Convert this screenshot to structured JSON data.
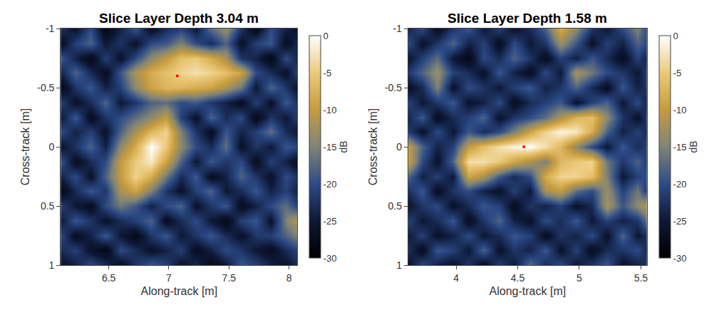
{
  "chart_data": [
    {
      "type": "heatmap",
      "title": "Slice Layer Depth 3.04 m",
      "x_label": "Along-track [m]",
      "y_label": "Cross-track [m]",
      "xlim": [
        6.1,
        8.07
      ],
      "ylim": [
        1,
        -1
      ],
      "xticks": [
        6.5,
        7,
        7.5,
        8
      ],
      "yticks": [
        -1,
        -0.5,
        0,
        0.5,
        1
      ],
      "colorbar": {
        "title": "dB",
        "range": [
          -30,
          0
        ],
        "ticks": [
          0,
          -5,
          -10,
          -15,
          -20,
          -25,
          -30
        ]
      },
      "points": {
        "x": [
          7.07
        ],
        "y": [
          -0.6
        ],
        "color": "#ff0000"
      },
      "x": [
        6.1,
        6.225,
        6.35,
        6.475,
        6.6,
        6.725,
        6.85,
        6.975,
        7.1,
        7.225,
        7.35,
        7.475,
        7.6,
        7.725,
        7.85,
        7.975,
        8.1
      ],
      "y": [
        -1,
        -0.875,
        -0.75,
        -0.625,
        -0.5,
        -0.375,
        -0.25,
        -0.125,
        0,
        0.125,
        0.25,
        0.375,
        0.5,
        0.625,
        0.75,
        0.875,
        1
      ],
      "z": [
        [
          -22,
          -26,
          -20,
          -28,
          -24,
          -19,
          -27,
          -23,
          -21,
          -25,
          -17,
          -13,
          -22,
          -28,
          -20,
          -24,
          -26
        ],
        [
          -27,
          -21,
          -18,
          -25,
          -22,
          -26,
          -20,
          -19,
          -15,
          -20,
          -23,
          -18,
          -26,
          -21,
          -19,
          -27,
          -22
        ],
        [
          -19,
          -24,
          -28,
          -21,
          -26,
          -20,
          -14,
          -10,
          -6,
          -5,
          -8,
          -12,
          -22,
          -24,
          -28,
          -20,
          -25
        ],
        [
          -24,
          -18,
          -23,
          -27,
          -19,
          -12,
          -8,
          -6,
          -4,
          -3,
          -4,
          -6,
          -9,
          -20,
          -23,
          -26,
          -19
        ],
        [
          -28,
          -22,
          -19,
          -24,
          -21,
          -14,
          -9,
          -7,
          -7,
          -8,
          -9,
          -12,
          -16,
          -25,
          -18,
          -22,
          -27
        ],
        [
          -21,
          -26,
          -23,
          -18,
          -25,
          -22,
          -18,
          -17,
          -20,
          -19,
          -22,
          -24,
          -27,
          -21,
          -26,
          -19,
          -23
        ],
        [
          -25,
          -19,
          -27,
          -22,
          -20,
          -17,
          -14,
          -10,
          -21,
          -26,
          -18,
          -23,
          -20,
          -28,
          -22,
          -25,
          -20
        ],
        [
          -20,
          -24,
          -21,
          -26,
          -18,
          -12,
          -7,
          -4,
          -15,
          -22,
          -27,
          -19,
          -24,
          -21,
          -17,
          -23,
          -26
        ],
        [
          -26,
          -22,
          -18,
          -24,
          -14,
          -8,
          0,
          -5,
          -14,
          -20,
          -23,
          -17,
          -26,
          -22,
          -25,
          -19,
          -21
        ],
        [
          -19,
          -27,
          -23,
          -20,
          -10,
          -5,
          -2,
          -9,
          -18,
          -25,
          -19,
          -22,
          -20,
          -27,
          -21,
          -24,
          -28
        ],
        [
          -24,
          -20,
          -26,
          -18,
          -10,
          -4,
          -8,
          -16,
          -23,
          -19,
          -27,
          -24,
          -18,
          -22,
          -26,
          -20,
          -23
        ],
        [
          -28,
          -23,
          -19,
          -22,
          -12,
          -9,
          -15,
          -22,
          -26,
          -21,
          -18,
          -25,
          -23,
          -19,
          -24,
          -21,
          -25
        ],
        [
          -21,
          -25,
          -27,
          -20,
          -16,
          -19,
          -24,
          -20,
          -18,
          -26,
          -22,
          -19,
          -27,
          -24,
          -20,
          -17,
          -22
        ],
        [
          -25,
          -19,
          -22,
          -26,
          -23,
          -21,
          -18,
          -27,
          -23,
          -20,
          -25,
          -28,
          -21,
          -19,
          -26,
          -15,
          -10
        ],
        [
          -20,
          -27,
          -24,
          -19,
          -25,
          -28,
          -22,
          -19,
          -25,
          -22,
          -19,
          -23,
          -26,
          -22,
          -21,
          -18,
          -14
        ],
        [
          -23,
          -21,
          -26,
          -28,
          -20,
          -23,
          -26,
          -24,
          -21,
          -27,
          -24,
          -20,
          -22,
          -25,
          -27,
          -23,
          -20
        ],
        [
          -26,
          -24,
          -20,
          -23,
          -27,
          -22,
          -19,
          -21,
          -26,
          -23,
          -28,
          -25,
          -19,
          -21,
          -24,
          -26,
          -22
        ]
      ]
    },
    {
      "type": "heatmap",
      "title": "Slice Layer Depth 1.58 m",
      "x_label": "Along-track [m]",
      "y_label": "Cross-track [m]",
      "xlim": [
        3.61,
        5.55
      ],
      "ylim": [
        1,
        -1
      ],
      "xticks": [
        4,
        4.5,
        5,
        5.5
      ],
      "yticks": [
        -1,
        -0.5,
        0,
        0.5,
        1
      ],
      "colorbar": {
        "title": "dB",
        "range": [
          -30,
          0
        ],
        "ticks": [
          0,
          -5,
          -10,
          -15,
          -20,
          -25,
          -30
        ]
      },
      "points": {
        "x": [
          4.55
        ],
        "y": [
          0.0
        ],
        "color": "#ff0000"
      },
      "x": [
        3.6,
        3.725,
        3.85,
        3.975,
        4.1,
        4.225,
        4.35,
        4.475,
        4.6,
        4.725,
        4.85,
        4.975,
        5.1,
        5.225,
        5.35,
        5.475,
        5.6
      ],
      "y": [
        -1,
        -0.875,
        -0.75,
        -0.625,
        -0.5,
        -0.375,
        -0.25,
        -0.125,
        0,
        0.125,
        0.25,
        0.375,
        0.5,
        0.625,
        0.75,
        0.875,
        1
      ],
      "z": [
        [
          -24,
          -20,
          -27,
          -22,
          -19,
          -25,
          -21,
          -26,
          -23,
          -18,
          -8,
          -14,
          -22,
          -25,
          -20,
          -15,
          -24
        ],
        [
          -19,
          -26,
          -22,
          -18,
          -24,
          -21,
          -27,
          -20,
          -25,
          -22,
          -13,
          -19,
          -26,
          -21,
          -24,
          -18,
          -22
        ],
        [
          -26,
          -21,
          -17,
          -25,
          -28,
          -20,
          -23,
          -18,
          -22,
          -27,
          -21,
          -24,
          -19,
          -23,
          -27,
          -21,
          -26
        ],
        [
          -22,
          -18,
          -13,
          -21,
          -23,
          -26,
          -19,
          -24,
          -27,
          -20,
          -25,
          -12,
          -16,
          -20,
          -22,
          -25,
          -19
        ],
        [
          -27,
          -23,
          -15,
          -26,
          -20,
          -22,
          -25,
          -21,
          -19,
          -24,
          -22,
          -18,
          -23,
          -27,
          -19,
          -24,
          -21
        ],
        [
          -20,
          -25,
          -22,
          -19,
          -26,
          -24,
          -20,
          -27,
          -23,
          -21,
          -19,
          -26,
          -21,
          -18,
          -25,
          -20,
          -27
        ],
        [
          -24,
          -19,
          -27,
          -23,
          -21,
          -18,
          -26,
          -22,
          -20,
          -17,
          -12,
          -7,
          -6,
          -14,
          -22,
          -26,
          -19
        ],
        [
          -21,
          -26,
          -20,
          -25,
          -19,
          -23,
          -20,
          -15,
          -9,
          -4,
          -1,
          -2,
          -8,
          -18,
          -24,
          -21,
          -25
        ],
        [
          -9,
          -18,
          -24,
          -21,
          -10,
          -6,
          -3,
          -1,
          0,
          -3,
          -7,
          -14,
          -20,
          -25,
          -19,
          -23,
          -20
        ],
        [
          -8,
          -20,
          -26,
          -18,
          -3,
          -3,
          -5,
          -9,
          -12,
          -15,
          -7,
          -5,
          -4,
          -16,
          -22,
          -18,
          -24
        ],
        [
          -17,
          -24,
          -21,
          -25,
          -9,
          -12,
          -19,
          -23,
          -20,
          -8,
          -4,
          -4,
          -6,
          -15,
          -25,
          -21,
          -19
        ],
        [
          -23,
          -19,
          -27,
          -22,
          -20,
          -24,
          -26,
          -21,
          -25,
          -12,
          -10,
          -17,
          -20,
          -13,
          -21,
          -16,
          -26
        ],
        [
          -26,
          -22,
          -20,
          -26,
          -23,
          -19,
          -21,
          -27,
          -22,
          -24,
          -21,
          -26,
          -23,
          -12,
          -19,
          -14,
          -9
        ],
        [
          -20,
          -25,
          -23,
          -19,
          -27,
          -22,
          -18,
          -24,
          -26,
          -20,
          -23,
          -19,
          -25,
          -21,
          -24,
          -22,
          -13
        ],
        [
          -25,
          -21,
          -26,
          -24,
          -20,
          -25,
          -23,
          -19,
          -21,
          -27,
          -22,
          -24,
          -20,
          -26,
          -18,
          -25,
          -21
        ],
        [
          -22,
          -27,
          -19,
          -21,
          -25,
          -18,
          -26,
          -22,
          -24,
          -19,
          -26,
          -21,
          -27,
          -23,
          -22,
          -20,
          -26
        ],
        [
          -27,
          -20,
          -24,
          -26,
          -22,
          -27,
          -21,
          -25,
          -17,
          -23,
          -20,
          -25,
          -22,
          -19,
          -26,
          -24,
          -21
        ]
      ]
    }
  ]
}
